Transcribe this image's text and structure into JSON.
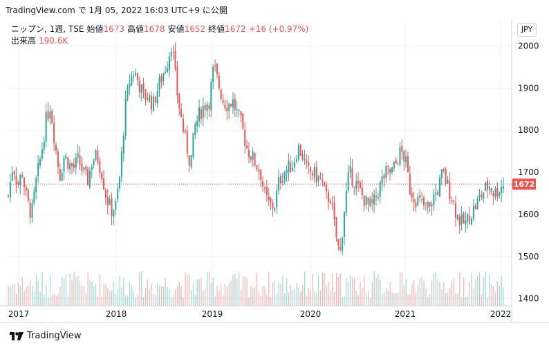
{
  "caption": "TradingView.com で 1月 05, 2022 16:03 UTC+9 に公開",
  "legend": {
    "symbol": "ニップン, 1週, TSE",
    "open_label": "始値",
    "open_value": "1673",
    "high_label": "高値",
    "high_value": "1678",
    "low_label": "安値",
    "low_value": "1652",
    "close_label": "終値",
    "close_value": "1672",
    "change": "+16 (+0.97%)",
    "volume_label": "出来高",
    "volume_value": "190.6K"
  },
  "currency_button": "JPY",
  "brand_text": "TradingView",
  "colors": {
    "up": "#26a69a",
    "down": "#ef5350",
    "grid": "#f0f3fa",
    "axis": "#d1d4dc",
    "price_line": "#ef5350"
  },
  "chart_data": {
    "type": "candlestick",
    "x_ticks": [
      "2017",
      "2018",
      "2019",
      "2020",
      "2021",
      "2022"
    ],
    "y_ticks": [
      1400,
      1500,
      1600,
      1700,
      1800,
      1900,
      2000
    ],
    "ylim": [
      1383,
      2060
    ],
    "current_price": 1672,
    "current_price_label": "1672",
    "weekly_close_approx": [
      1645,
      1720,
      1670,
      1700,
      1630,
      1600,
      1680,
      1740,
      1820,
      1860,
      1770,
      1690,
      1740,
      1720,
      1710,
      1730,
      1700,
      1680,
      1730,
      1740,
      1700,
      1640,
      1610,
      1620,
      1700,
      1850,
      1920,
      1940,
      1910,
      1880,
      1880,
      1860,
      1900,
      1930,
      1960,
      2010,
      1900,
      1830,
      1770,
      1720,
      1810,
      1840,
      1860,
      1870,
      1950,
      1910,
      1870,
      1860,
      1870,
      1840,
      1810,
      1760,
      1740,
      1720,
      1700,
      1640,
      1620,
      1620,
      1680,
      1700,
      1710,
      1720,
      1760,
      1740,
      1700,
      1700,
      1690,
      1680,
      1640,
      1640,
      1560,
      1500,
      1620,
      1700,
      1680,
      1660,
      1640,
      1620,
      1620,
      1650,
      1680,
      1700,
      1700,
      1720,
      1750,
      1730,
      1660,
      1640,
      1630,
      1620,
      1610,
      1640,
      1660,
      1700,
      1670,
      1640,
      1600,
      1580,
      1580,
      1600,
      1620,
      1640,
      1660,
      1670,
      1650,
      1660,
      1672
    ]
  }
}
